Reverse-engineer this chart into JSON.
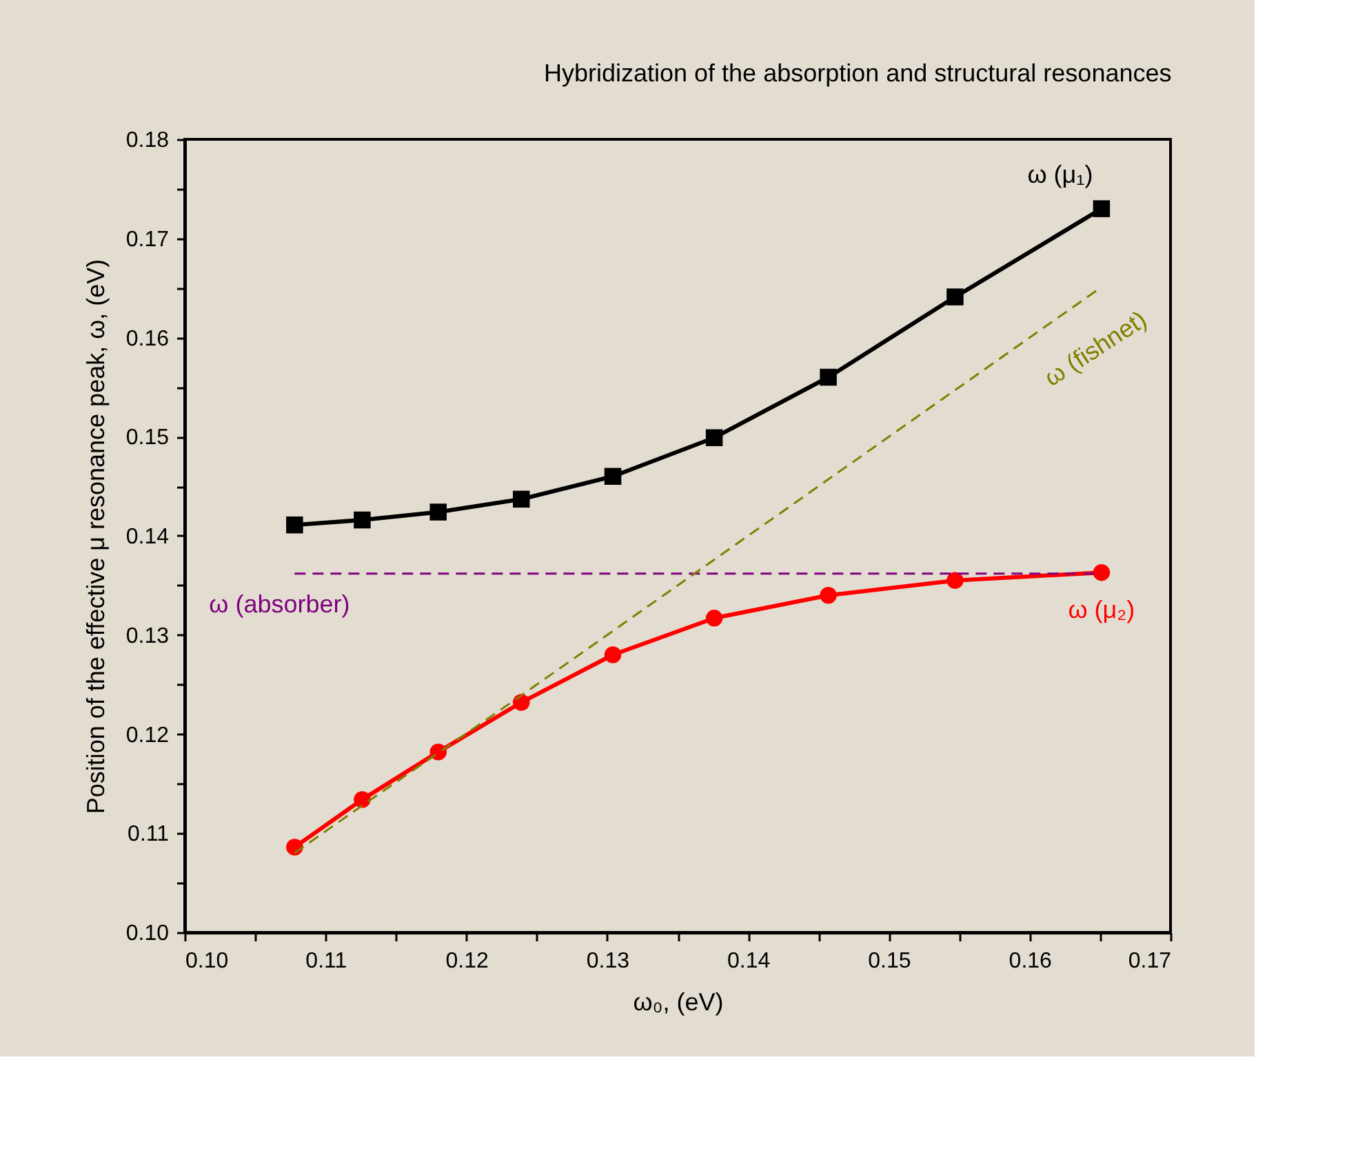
{
  "chart_data": {
    "type": "line",
    "title": "Hybridization of the absorption and structural resonances",
    "xlabel": "ω₀, (eV)",
    "ylabel": "Position of the effective μ resonance peak, ω, (eV)",
    "x": [
      0.1078,
      0.1126,
      0.118,
      0.1239,
      0.1304,
      0.1376,
      0.1457,
      0.1547,
      0.1651
    ],
    "series": [
      {
        "name": "ω (μ₁)",
        "color": "#000000",
        "marker": "square",
        "line_style": "solid",
        "values": [
          0.1411,
          0.1416,
          0.1424,
          0.1437,
          0.146,
          0.1499,
          0.156,
          0.1641,
          0.173
        ]
      },
      {
        "name": "ω (μ₂)",
        "color": "#ff0000",
        "marker": "circle",
        "line_style": "solid",
        "values": [
          0.1086,
          0.1134,
          0.1182,
          0.1232,
          0.128,
          0.1317,
          0.134,
          0.1355,
          0.1363
        ]
      },
      {
        "name": "ω (absorber)",
        "color": "#800080",
        "marker": "none",
        "line_style": "dashed",
        "values": [
          0.1362,
          0.1362,
          0.1362,
          0.1362,
          0.1362,
          0.1362,
          0.1362,
          0.1362,
          0.1362
        ]
      },
      {
        "name": "ω (fishnet)",
        "color": "#808000",
        "marker": "none",
        "line_style": "dashed",
        "values": [
          0.108,
          0.1128,
          0.1181,
          0.1239,
          0.1304,
          0.1376,
          0.1457,
          0.1547,
          0.1651
        ]
      }
    ],
    "xlim": [
      0.1,
      0.17
    ],
    "ylim": [
      0.1,
      0.18
    ],
    "xticks": [
      {
        "value": 0.1,
        "label": "0.10"
      },
      {
        "value": 0.105,
        "label": null
      },
      {
        "value": 0.11,
        "label": "0.11"
      },
      {
        "value": 0.115,
        "label": null
      },
      {
        "value": 0.12,
        "label": "0.12"
      },
      {
        "value": 0.125,
        "label": null
      },
      {
        "value": 0.13,
        "label": "0.13"
      },
      {
        "value": 0.135,
        "label": null
      },
      {
        "value": 0.14,
        "label": "0.14"
      },
      {
        "value": 0.145,
        "label": null
      },
      {
        "value": 0.15,
        "label": "0.15"
      },
      {
        "value": 0.155,
        "label": null
      },
      {
        "value": 0.16,
        "label": "0.16"
      },
      {
        "value": 0.165,
        "label": null
      },
      {
        "value": 0.17,
        "label": "0.17"
      }
    ],
    "yticks": [
      {
        "value": 0.1,
        "label": "0.10"
      },
      {
        "value": 0.105,
        "label": null
      },
      {
        "value": 0.11,
        "label": "0.11"
      },
      {
        "value": 0.115,
        "label": null
      },
      {
        "value": 0.12,
        "label": "0.12"
      },
      {
        "value": 0.125,
        "label": null
      },
      {
        "value": 0.13,
        "label": "0.13"
      },
      {
        "value": 0.135,
        "label": null
      },
      {
        "value": 0.14,
        "label": "0.14"
      },
      {
        "value": 0.145,
        "label": null
      },
      {
        "value": 0.15,
        "label": "0.15"
      },
      {
        "value": 0.155,
        "label": null
      },
      {
        "value": 0.16,
        "label": "0.16"
      },
      {
        "value": 0.165,
        "label": null
      },
      {
        "value": 0.17,
        "label": "0.17"
      },
      {
        "value": 0.175,
        "label": null
      },
      {
        "value": 0.18,
        "label": "0.18"
      }
    ],
    "grid": false,
    "legend": false
  }
}
